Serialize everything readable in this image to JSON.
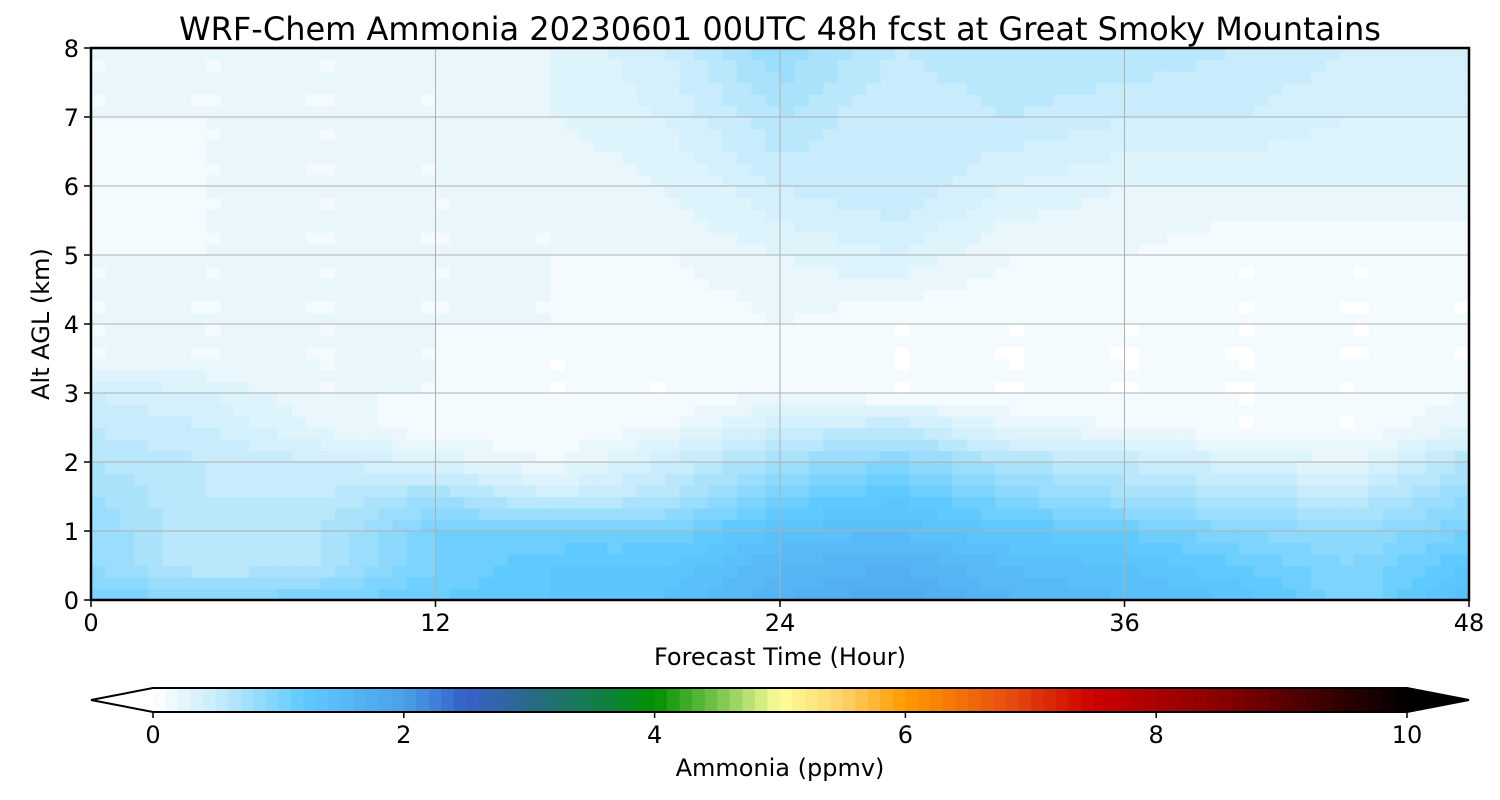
{
  "chart_data": {
    "type": "heatmap",
    "title": "WRF-Chem Ammonia  20230601 00UTC 48h fcst at Great Smoky Mountains",
    "xlabel": "Forecast Time (Hour)",
    "ylabel": "Alt AGL (km)",
    "xlim": [
      0,
      48
    ],
    "ylim": [
      0,
      8
    ],
    "x_ticks": [
      "0",
      "12",
      "24",
      "36",
      "48"
    ],
    "y_ticks": [
      "0",
      "1",
      "2",
      "3",
      "4",
      "5",
      "6",
      "7",
      "8"
    ],
    "grid": true,
    "x": [
      0,
      4,
      8,
      12,
      16,
      20,
      24,
      28,
      32,
      36,
      40,
      44,
      48
    ],
    "y": [
      0,
      0.5,
      1,
      1.5,
      2,
      2.5,
      3,
      3.5,
      4,
      5,
      6,
      7,
      8
    ],
    "z": [
      [
        1.1,
        1.0,
        1.1,
        1.2,
        1.3,
        1.4,
        1.7,
        1.9,
        1.6,
        1.5,
        1.4,
        1.0,
        1.5
      ],
      [
        0.9,
        0.6,
        0.7,
        1.1,
        1.3,
        1.3,
        1.6,
        1.7,
        1.5,
        1.4,
        1.2,
        1.0,
        1.3
      ],
      [
        0.9,
        0.6,
        0.7,
        1.1,
        1.1,
        1.1,
        1.4,
        1.5,
        1.3,
        1.2,
        1.0,
        0.9,
        1.1
      ],
      [
        0.8,
        0.6,
        0.6,
        0.8,
        0.5,
        0.7,
        1.1,
        1.3,
        1.0,
        0.8,
        0.7,
        0.6,
        0.9
      ],
      [
        0.7,
        0.6,
        0.5,
        0.4,
        0.2,
        0.5,
        0.8,
        1.0,
        0.7,
        0.6,
        0.4,
        0.3,
        0.7
      ],
      [
        0.6,
        0.5,
        0.3,
        0.1,
        0.1,
        0.2,
        0.5,
        0.6,
        0.3,
        0.2,
        0.1,
        0.1,
        0.3
      ],
      [
        0.5,
        0.4,
        0.2,
        0.2,
        0.1,
        0.1,
        0.2,
        0.1,
        0.1,
        0.1,
        0.1,
        0.1,
        0.2
      ],
      [
        0.2,
        0.2,
        0.2,
        0.2,
        0.1,
        0.1,
        0.1,
        0.1,
        0.1,
        0.1,
        0.1,
        0.1,
        0.1
      ],
      [
        0.2,
        0.2,
        0.2,
        0.2,
        0.2,
        0.1,
        0.2,
        0.1,
        0.1,
        0.1,
        0.1,
        0.1,
        0.1
      ],
      [
        0.2,
        0.2,
        0.2,
        0.2,
        0.2,
        0.2,
        0.3,
        0.4,
        0.2,
        0.2,
        0.1,
        0.1,
        0.1
      ],
      [
        0.1,
        0.2,
        0.2,
        0.2,
        0.2,
        0.3,
        0.5,
        0.6,
        0.4,
        0.3,
        0.3,
        0.3,
        0.3
      ],
      [
        0.2,
        0.2,
        0.2,
        0.2,
        0.3,
        0.4,
        0.7,
        0.5,
        0.6,
        0.5,
        0.5,
        0.4,
        0.4
      ],
      [
        0.2,
        0.2,
        0.2,
        0.2,
        0.3,
        0.5,
        0.9,
        0.6,
        0.7,
        0.7,
        0.6,
        0.5,
        0.5
      ]
    ],
    "colorbar": {
      "label": "Ammonia  (ppmv)",
      "range": [
        0,
        10
      ],
      "ticks": [
        "0",
        "2",
        "4",
        "6",
        "8",
        "10"
      ],
      "extend": "both",
      "under_color": "#ffffff",
      "over_color": "#000000",
      "stops": [
        {
          "value": 0.0,
          "color": "#ffffff"
        },
        {
          "value": 0.5,
          "color": "#c8ecfb"
        },
        {
          "value": 1.2,
          "color": "#5fcaff"
        },
        {
          "value": 2.0,
          "color": "#4aa0e8"
        },
        {
          "value": 2.5,
          "color": "#3560c8"
        },
        {
          "value": 3.0,
          "color": "#2a6a8a"
        },
        {
          "value": 3.6,
          "color": "#0f8040"
        },
        {
          "value": 4.0,
          "color": "#009000"
        },
        {
          "value": 4.6,
          "color": "#8fcf5a"
        },
        {
          "value": 5.0,
          "color": "#fffe9a"
        },
        {
          "value": 5.5,
          "color": "#fdd26a"
        },
        {
          "value": 6.0,
          "color": "#ff9a00"
        },
        {
          "value": 6.8,
          "color": "#e85010"
        },
        {
          "value": 7.5,
          "color": "#cc0000"
        },
        {
          "value": 8.5,
          "color": "#8a0000"
        },
        {
          "value": 10.0,
          "color": "#000000"
        }
      ]
    }
  }
}
